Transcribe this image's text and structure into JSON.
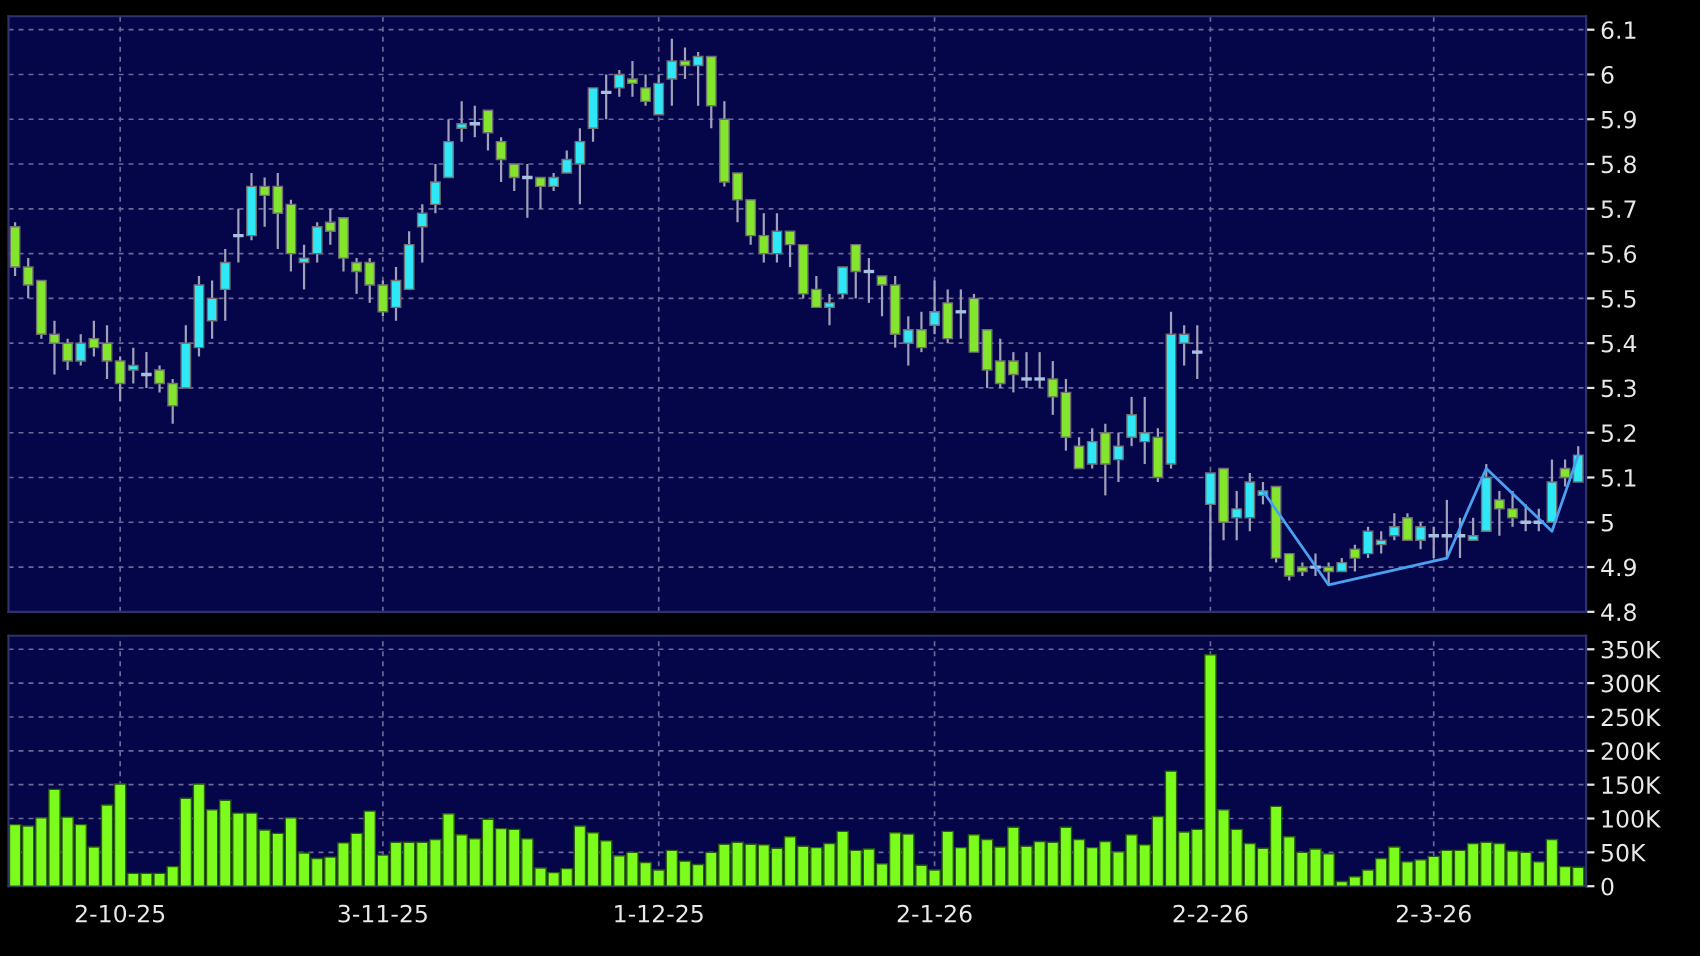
{
  "chart_data": [
    {
      "type": "candlestick",
      "tick_labels": "y",
      "grid": true,
      "categories": [
        null,
        null,
        null,
        null,
        null,
        null,
        null,
        null,
        null,
        null,
        null,
        null,
        null,
        null,
        null,
        null,
        null,
        null,
        null,
        null,
        null,
        null,
        null,
        null,
        null,
        null,
        null,
        null,
        null,
        null,
        null,
        null,
        null,
        null,
        null,
        null,
        null,
        null,
        null,
        null,
        null,
        null,
        null,
        null,
        null,
        null,
        null,
        null,
        null,
        null,
        null,
        null,
        null,
        null,
        null,
        null,
        null,
        null,
        null,
        null,
        null,
        null,
        null,
        null,
        null,
        null,
        null,
        null,
        null,
        null,
        null,
        null,
        null,
        null,
        null,
        null,
        null,
        null,
        null,
        null,
        null,
        null,
        null,
        null,
        null,
        null,
        null,
        null,
        null,
        null,
        null,
        null,
        null,
        null,
        null,
        null,
        null,
        null,
        null,
        null,
        null,
        null,
        null,
        null,
        null,
        null,
        null,
        null,
        null,
        null,
        null,
        null,
        null,
        null,
        null,
        null,
        null,
        null,
        null,
        null
      ],
      "ohlc": [
        [
          5.66,
          5.67,
          5.55,
          5.57
        ],
        [
          5.57,
          5.59,
          5.5,
          5.53
        ],
        [
          5.54,
          5.54,
          5.41,
          5.42
        ],
        [
          5.42,
          5.45,
          5.33,
          5.4
        ],
        [
          5.4,
          5.41,
          5.34,
          5.36
        ],
        [
          5.36,
          5.42,
          5.35,
          5.4
        ],
        [
          5.41,
          5.45,
          5.37,
          5.39
        ],
        [
          5.4,
          5.44,
          5.32,
          5.36
        ],
        [
          5.36,
          5.37,
          5.27,
          5.31
        ],
        [
          5.34,
          5.39,
          5.31,
          5.35
        ],
        [
          5.33,
          5.38,
          5.3,
          5.33
        ],
        [
          5.34,
          5.35,
          5.29,
          5.31
        ],
        [
          5.31,
          5.32,
          5.22,
          5.26
        ],
        [
          5.3,
          5.44,
          5.3,
          5.4
        ],
        [
          5.39,
          5.55,
          5.37,
          5.53
        ],
        [
          5.45,
          5.54,
          5.41,
          5.5
        ],
        [
          5.52,
          5.61,
          5.45,
          5.58
        ],
        [
          5.64,
          5.7,
          5.58,
          5.64
        ],
        [
          5.64,
          5.78,
          5.63,
          5.75
        ],
        [
          5.75,
          5.77,
          5.66,
          5.73
        ],
        [
          5.75,
          5.78,
          5.61,
          5.69
        ],
        [
          5.71,
          5.72,
          5.56,
          5.6
        ],
        [
          5.58,
          5.62,
          5.52,
          5.59
        ],
        [
          5.6,
          5.67,
          5.58,
          5.66
        ],
        [
          5.67,
          5.7,
          5.62,
          5.65
        ],
        [
          5.68,
          5.68,
          5.56,
          5.59
        ],
        [
          5.58,
          5.59,
          5.51,
          5.56
        ],
        [
          5.58,
          5.59,
          5.49,
          5.53
        ],
        [
          5.53,
          5.54,
          5.46,
          5.47
        ],
        [
          5.48,
          5.57,
          5.45,
          5.54
        ],
        [
          5.52,
          5.65,
          5.52,
          5.62
        ],
        [
          5.66,
          5.71,
          5.58,
          5.69
        ],
        [
          5.71,
          5.8,
          5.69,
          5.76
        ],
        [
          5.77,
          5.9,
          5.77,
          5.85
        ],
        [
          5.88,
          5.94,
          5.85,
          5.89
        ],
        [
          5.89,
          5.93,
          5.86,
          5.89
        ],
        [
          5.92,
          5.92,
          5.83,
          5.87
        ],
        [
          5.85,
          5.86,
          5.76,
          5.81
        ],
        [
          5.8,
          5.8,
          5.74,
          5.77
        ],
        [
          5.77,
          5.8,
          5.68,
          5.77
        ],
        [
          5.77,
          5.77,
          5.7,
          5.75
        ],
        [
          5.75,
          5.78,
          5.74,
          5.77
        ],
        [
          5.78,
          5.83,
          5.78,
          5.81
        ],
        [
          5.8,
          5.88,
          5.71,
          5.85
        ],
        [
          5.88,
          5.97,
          5.85,
          5.97
        ],
        [
          5.96,
          6.0,
          5.9,
          5.96
        ],
        [
          5.97,
          6.01,
          5.95,
          6.0
        ],
        [
          5.99,
          6.03,
          5.95,
          5.98
        ],
        [
          5.97,
          6.0,
          5.93,
          5.94
        ],
        [
          5.91,
          6.0,
          5.91,
          5.98
        ],
        [
          5.99,
          6.08,
          5.93,
          6.03
        ],
        [
          6.03,
          6.06,
          5.99,
          6.02
        ],
        [
          6.02,
          6.05,
          5.93,
          6.04
        ],
        [
          6.04,
          6.04,
          5.88,
          5.93
        ],
        [
          5.9,
          5.94,
          5.75,
          5.76
        ],
        [
          5.78,
          5.78,
          5.67,
          5.72
        ],
        [
          5.72,
          5.72,
          5.62,
          5.64
        ],
        [
          5.64,
          5.69,
          5.58,
          5.6
        ],
        [
          5.6,
          5.69,
          5.58,
          5.65
        ],
        [
          5.65,
          5.65,
          5.57,
          5.62
        ],
        [
          5.62,
          5.62,
          5.5,
          5.51
        ],
        [
          5.52,
          5.55,
          5.48,
          5.48
        ],
        [
          5.48,
          5.51,
          5.44,
          5.49
        ],
        [
          5.51,
          5.57,
          5.5,
          5.57
        ],
        [
          5.62,
          5.62,
          5.5,
          5.56
        ],
        [
          5.56,
          5.59,
          5.49,
          5.56
        ],
        [
          5.55,
          5.55,
          5.46,
          5.53
        ],
        [
          5.53,
          5.55,
          5.39,
          5.42
        ],
        [
          5.4,
          5.46,
          5.35,
          5.43
        ],
        [
          5.43,
          5.47,
          5.38,
          5.39
        ],
        [
          5.44,
          5.54,
          5.42,
          5.47
        ],
        [
          5.49,
          5.52,
          5.4,
          5.41
        ],
        [
          5.47,
          5.52,
          5.41,
          5.47
        ],
        [
          5.5,
          5.51,
          5.38,
          5.38
        ],
        [
          5.43,
          5.43,
          5.3,
          5.34
        ],
        [
          5.36,
          5.41,
          5.3,
          5.31
        ],
        [
          5.36,
          5.38,
          5.29,
          5.33
        ],
        [
          5.32,
          5.38,
          5.3,
          5.32
        ],
        [
          5.32,
          5.38,
          5.3,
          5.32
        ],
        [
          5.32,
          5.36,
          5.24,
          5.28
        ],
        [
          5.29,
          5.32,
          5.16,
          5.19
        ],
        [
          5.17,
          5.19,
          5.12,
          5.12
        ],
        [
          5.13,
          5.21,
          5.12,
          5.18
        ],
        [
          5.2,
          5.22,
          5.06,
          5.13
        ],
        [
          5.14,
          5.2,
          5.09,
          5.17
        ],
        [
          5.19,
          5.28,
          5.17,
          5.24
        ],
        [
          5.18,
          5.28,
          5.13,
          5.2
        ],
        [
          5.19,
          5.21,
          5.09,
          5.1
        ],
        [
          5.13,
          5.47,
          5.12,
          5.42
        ],
        [
          5.4,
          5.44,
          5.35,
          5.42
        ],
        [
          5.38,
          5.44,
          5.32,
          5.38
        ],
        [
          5.04,
          5.11,
          4.89,
          5.11
        ],
        [
          5.12,
          5.12,
          4.96,
          5.0
        ],
        [
          5.01,
          5.07,
          4.96,
          5.03
        ],
        [
          5.01,
          5.11,
          4.98,
          5.09
        ],
        [
          5.06,
          5.09,
          5.04,
          5.07
        ],
        [
          5.08,
          5.08,
          4.91,
          4.92
        ],
        [
          4.93,
          4.93,
          4.87,
          4.88
        ],
        [
          4.9,
          4.91,
          4.88,
          4.89
        ],
        [
          4.9,
          4.93,
          4.88,
          4.9
        ],
        [
          4.9,
          4.91,
          4.86,
          4.89
        ],
        [
          4.89,
          4.92,
          4.89,
          4.91
        ],
        [
          4.94,
          4.95,
          4.89,
          4.92
        ],
        [
          4.93,
          4.99,
          4.92,
          4.98
        ],
        [
          4.95,
          4.98,
          4.93,
          4.96
        ],
        [
          4.97,
          5.02,
          4.96,
          4.99
        ],
        [
          5.01,
          5.02,
          4.96,
          4.96
        ],
        [
          4.96,
          5.0,
          4.94,
          4.99
        ],
        [
          4.97,
          4.99,
          4.92,
          4.97
        ],
        [
          4.97,
          5.05,
          4.92,
          4.97
        ],
        [
          4.97,
          5.01,
          4.92,
          4.97
        ],
        [
          4.96,
          5.01,
          4.96,
          4.97
        ],
        [
          4.98,
          5.13,
          4.98,
          5.1
        ],
        [
          5.05,
          5.07,
          4.97,
          5.03
        ],
        [
          5.03,
          5.07,
          4.99,
          5.01
        ],
        [
          5.0,
          5.04,
          4.98,
          5.0
        ],
        [
          5.0,
          5.03,
          4.98,
          5.0
        ],
        [
          5.0,
          5.14,
          5.0,
          5.09
        ],
        [
          5.12,
          5.14,
          5.08,
          5.1
        ],
        [
          5.09,
          5.17,
          5.09,
          5.15
        ]
      ],
      "colors": [
        "#84e62c",
        "#84e62c",
        "#84e62c",
        "#84e62c",
        "#84e62c",
        "#2ee8f8",
        "#84e62c",
        "#84e62c",
        "#84e62c",
        "#2ee8f8",
        "#a8c0e0",
        "#84e62c",
        "#84e62c",
        "#2ee8f8",
        "#2ee8f8",
        "#2ee8f8",
        "#2ee8f8",
        "#a8c0e0",
        "#2ee8f8",
        "#84e62c",
        "#84e62c",
        "#84e62c",
        "#2ee8f8",
        "#2ee8f8",
        "#84e62c",
        "#84e62c",
        "#84e62c",
        "#84e62c",
        "#84e62c",
        "#2ee8f8",
        "#2ee8f8",
        "#2ee8f8",
        "#2ee8f8",
        "#2ee8f8",
        "#2ee8f8",
        "#a8c0e0",
        "#84e62c",
        "#84e62c",
        "#84e62c",
        "#a8c0e0",
        "#84e62c",
        "#2ee8f8",
        "#2ee8f8",
        "#2ee8f8",
        "#2ee8f8",
        "#a8c0e0",
        "#2ee8f8",
        "#84e62c",
        "#84e62c",
        "#2ee8f8",
        "#2ee8f8",
        "#84e62c",
        "#2ee8f8",
        "#84e62c",
        "#84e62c",
        "#84e62c",
        "#84e62c",
        "#84e62c",
        "#2ee8f8",
        "#84e62c",
        "#84e62c",
        "#84e62c",
        "#2ee8f8",
        "#2ee8f8",
        "#84e62c",
        "#a8c0e0",
        "#84e62c",
        "#84e62c",
        "#2ee8f8",
        "#84e62c",
        "#2ee8f8",
        "#84e62c",
        "#a8c0e0",
        "#84e62c",
        "#84e62c",
        "#84e62c",
        "#84e62c",
        "#a8c0e0",
        "#a8c0e0",
        "#84e62c",
        "#84e62c",
        "#84e62c",
        "#2ee8f8",
        "#84e62c",
        "#2ee8f8",
        "#2ee8f8",
        "#2ee8f8",
        "#84e62c",
        "#2ee8f8",
        "#2ee8f8",
        "#a8c0e0",
        "#2ee8f8",
        "#84e62c",
        "#2ee8f8",
        "#2ee8f8",
        "#2ee8f8",
        "#84e62c",
        "#84e62c",
        "#84e62c",
        "#a8c0e0",
        "#84e62c",
        "#2ee8f8",
        "#84e62c",
        "#2ee8f8",
        "#2ee8f8",
        "#2ee8f8",
        "#84e62c",
        "#2ee8f8",
        "#a8c0e0",
        "#a8c0e0",
        "#a8c0e0",
        "#2ee8f8",
        "#2ee8f8",
        "#84e62c",
        "#84e62c",
        "#a8c0e0",
        "#a8c0e0",
        "#2ee8f8",
        "#84e62c",
        "#2ee8f8"
      ],
      "series": [
        {
          "type": "line",
          "color": "#4aa0f0",
          "values": [
            null,
            null,
            null,
            null,
            null,
            null,
            null,
            null,
            null,
            null,
            null,
            null,
            null,
            null,
            null,
            null,
            null,
            null,
            null,
            null,
            null,
            null,
            null,
            null,
            null,
            null,
            null,
            null,
            null,
            null,
            null,
            null,
            null,
            null,
            null,
            null,
            null,
            null,
            null,
            null,
            null,
            null,
            null,
            null,
            null,
            null,
            null,
            null,
            null,
            null,
            null,
            null,
            null,
            null,
            null,
            null,
            null,
            null,
            null,
            null,
            null,
            null,
            null,
            null,
            null,
            null,
            null,
            null,
            null,
            null,
            null,
            null,
            null,
            null,
            null,
            null,
            null,
            null,
            null,
            null,
            null,
            null,
            null,
            null,
            null,
            null,
            null,
            null,
            null,
            null,
            null,
            null,
            null,
            null,
            null,
            5.07,
            null,
            null,
            null,
            null,
            4.86,
            null,
            null,
            null,
            null,
            null,
            null,
            null,
            null,
            4.92,
            null,
            null,
            5.12,
            null,
            null,
            null,
            null,
            4.98,
            null,
            5.15
          ]
        }
      ],
      "ylim": [
        4.8,
        6.13
      ],
      "yticks": [
        4.8,
        4.9,
        5,
        5.1,
        5.2,
        5.3,
        5.4,
        5.5,
        5.6,
        5.7,
        5.8,
        5.9,
        6,
        6.1
      ]
    },
    {
      "type": "bar",
      "grid": true,
      "categories": [
        null,
        null,
        null,
        null,
        null,
        null,
        null,
        null,
        "2-10-25",
        null,
        null,
        null,
        null,
        null,
        null,
        null,
        null,
        null,
        null,
        null,
        null,
        null,
        null,
        null,
        null,
        null,
        null,
        null,
        "3-11-25",
        null,
        null,
        null,
        null,
        null,
        null,
        null,
        null,
        null,
        null,
        null,
        null,
        null,
        null,
        null,
        null,
        null,
        null,
        null,
        null,
        "1-12-25",
        null,
        null,
        null,
        null,
        null,
        null,
        null,
        null,
        null,
        null,
        null,
        null,
        null,
        null,
        null,
        null,
        null,
        null,
        null,
        null,
        "2-1-26",
        null,
        null,
        null,
        null,
        null,
        null,
        null,
        null,
        null,
        null,
        null,
        null,
        null,
        null,
        null,
        null,
        null,
        null,
        null,
        null,
        "2-2-26",
        null,
        null,
        null,
        null,
        null,
        null,
        null,
        null,
        null,
        null,
        null,
        null,
        null,
        null,
        null,
        null,
        "2-3-26",
        null,
        null,
        null,
        null,
        null,
        null,
        null,
        null,
        null,
        null,
        null
      ],
      "series": [
        {
          "color": "#7cfc1c",
          "values": [
            91000,
            89000,
            101000,
            143000,
            102000,
            91000,
            58000,
            120000,
            151000,
            19000,
            19000,
            19000,
            29000,
            130000,
            151000,
            113000,
            127000,
            108000,
            108000,
            83000,
            78000,
            101000,
            49000,
            41000,
            43000,
            64000,
            78000,
            111000,
            46000,
            65000,
            65000,
            65000,
            69000,
            107000,
            76000,
            70000,
            99000,
            85000,
            84000,
            70000,
            27000,
            20000,
            26000,
            89000,
            79000,
            67000,
            45000,
            50000,
            35000,
            24000,
            53000,
            37000,
            32000,
            50000,
            62000,
            65000,
            62000,
            61000,
            56000,
            73000,
            59000,
            57000,
            63000,
            81000,
            53000,
            55000,
            33000,
            79000,
            77000,
            31000,
            24000,
            81000,
            57000,
            76000,
            69000,
            58000,
            87000,
            59000,
            66000,
            65000,
            87000,
            69000,
            57000,
            66000,
            51000,
            76000,
            61000,
            103000,
            170000,
            80000,
            84000,
            342000,
            113000,
            84000,
            63000,
            56000,
            118000,
            73000,
            50000,
            55000,
            48000,
            7000,
            14000,
            24000,
            41000,
            58000,
            36000,
            39000,
            44000,
            53000,
            53000,
            63000,
            65000,
            63000,
            52000,
            50000,
            36000,
            69000,
            29000,
            28000
          ]
        }
      ],
      "ylim": [
        0,
        370000
      ],
      "yticks": [
        0,
        {
          "value": 50000,
          "label": "50K"
        },
        {
          "value": 100000,
          "label": "100K"
        },
        {
          "value": 150000,
          "label": "150K"
        },
        {
          "value": 200000,
          "label": "200K"
        },
        {
          "value": 250000,
          "label": "250K"
        },
        {
          "value": 300000,
          "label": "300K"
        },
        {
          "value": 350000,
          "label": "350K"
        }
      ]
    }
  ]
}
